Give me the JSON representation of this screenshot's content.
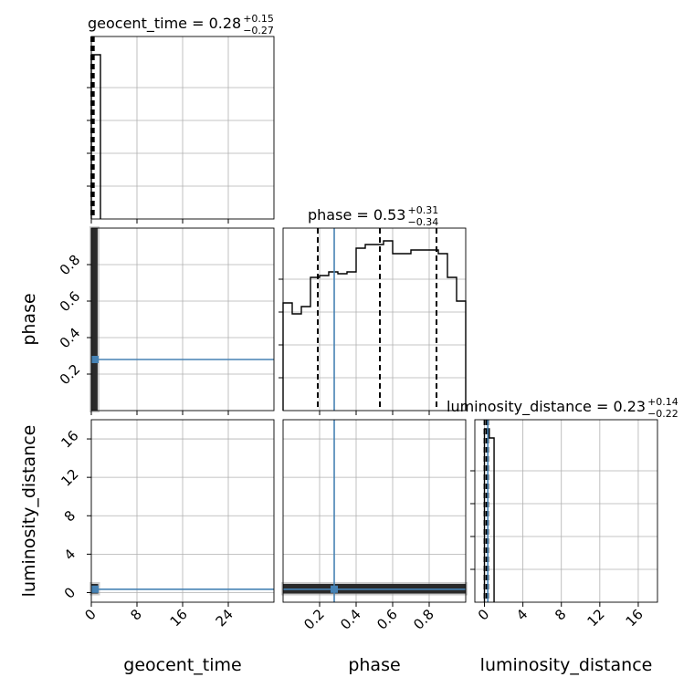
{
  "chart_data": {
    "type": "corner",
    "parameters": [
      "geocent_time",
      "phase",
      "luminosity_distance"
    ],
    "truths": {
      "geocent_time": 0,
      "phase": 0.28,
      "luminosity_distance": 0.35
    },
    "truth_color": "#4682b4",
    "grid": true,
    "panels": {
      "geocent_time_hist": {
        "title": {
          "prefix": "geocent_time = ",
          "median": "0.28",
          "plus": "+0.15",
          "minus": "−0.27"
        },
        "type": "step-histogram",
        "xlim": [
          0,
          32
        ],
        "bin_edges": [
          0,
          1.6
        ],
        "counts": [
          0.9
        ],
        "quantiles": [
          0.01,
          0.28,
          0.43
        ]
      },
      "phase_hist": {
        "title": {
          "prefix": "phase = ",
          "median": "0.53",
          "plus": "+0.31",
          "minus": "−0.34"
        },
        "type": "step-histogram",
        "xlim": [
          0,
          1
        ],
        "bin_edges": [
          0,
          0.05,
          0.1,
          0.15,
          0.2,
          0.25,
          0.3,
          0.35,
          0.4,
          0.45,
          0.5,
          0.55,
          0.6,
          0.65,
          0.7,
          0.75,
          0.8,
          0.85,
          0.9,
          0.95,
          1.0
        ],
        "counts": [
          0.59,
          0.53,
          0.57,
          0.73,
          0.74,
          0.76,
          0.75,
          0.76,
          0.89,
          0.91,
          0.91,
          0.93,
          0.86,
          0.86,
          0.88,
          0.88,
          0.88,
          0.86,
          0.73,
          0.6
        ],
        "quantiles": [
          0.19,
          0.53,
          0.84
        ]
      },
      "luminosity_distance_hist": {
        "title": {
          "prefix": "luminosity_distance = ",
          "median": "0.23",
          "plus": "+0.14",
          "minus": "−0.22"
        },
        "type": "step-histogram",
        "xlim": [
          -1,
          18
        ],
        "bin_edges": [
          0,
          0.5,
          1.0
        ],
        "counts": [
          0.95,
          0.9
        ],
        "quantiles": [
          0.01,
          0.23,
          0.37
        ]
      }
    },
    "axes": {
      "geocent_time": {
        "label": "geocent_time",
        "range": [
          0,
          32
        ],
        "ticks": [
          0,
          8,
          16,
          24
        ],
        "tick_labels": [
          "0",
          "8",
          "16",
          "24"
        ]
      },
      "phase": {
        "label": "phase",
        "range": [
          0,
          1
        ],
        "ticks": [
          0.2,
          0.4,
          0.6,
          0.8
        ],
        "tick_labels": [
          "0.2",
          "0.4",
          "0.6",
          "0.8"
        ]
      },
      "luminosity_distance": {
        "label": "luminosity_distance",
        "range": [
          -1,
          18
        ],
        "ticks": [
          0,
          4,
          8,
          12,
          16
        ],
        "tick_labels": [
          "0",
          "4",
          "8",
          "12",
          "16"
        ]
      }
    },
    "histogram_ylim": [
      0,
      1
    ]
  }
}
